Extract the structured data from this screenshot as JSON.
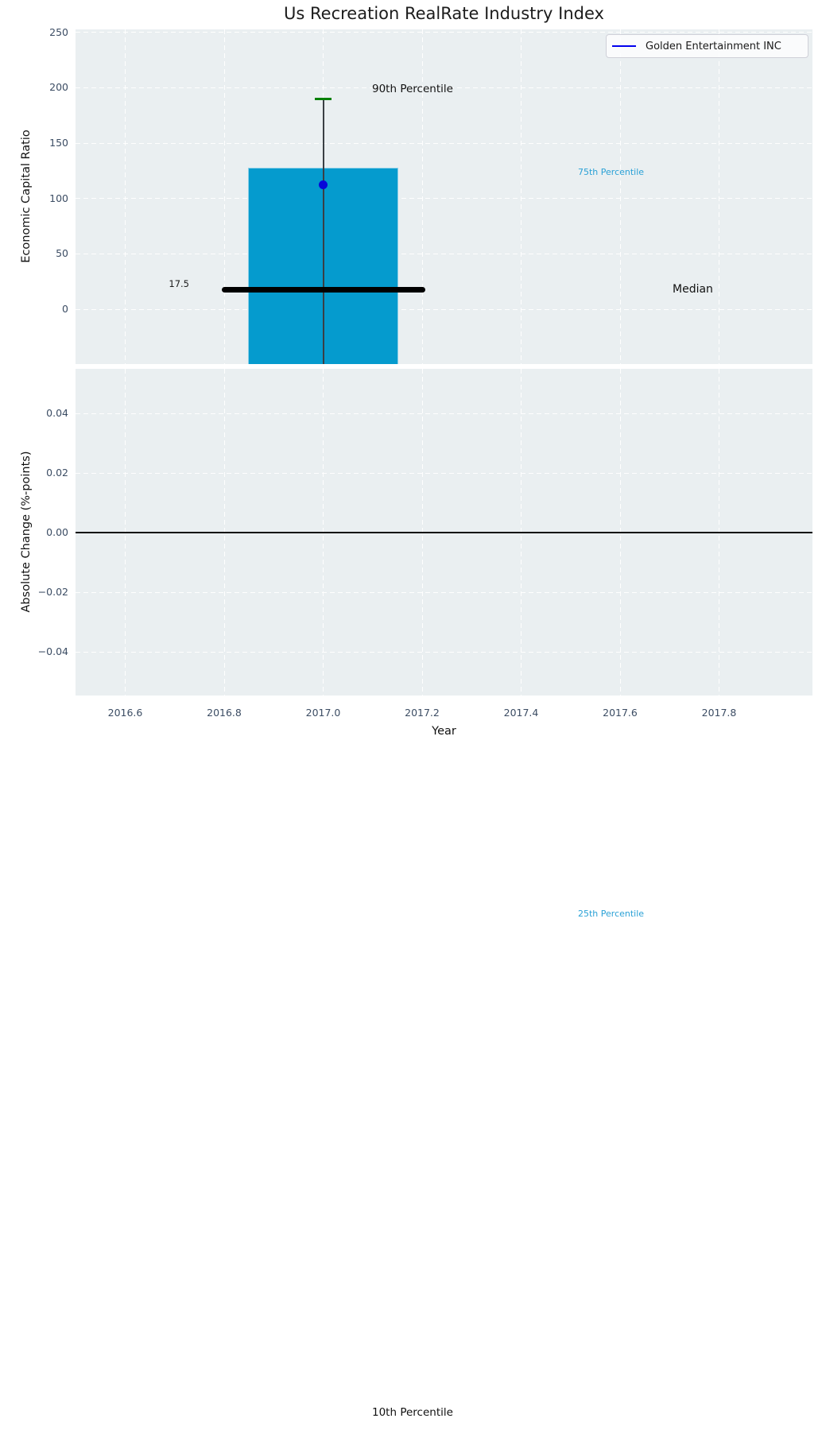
{
  "title": "Us Recreation RealRate Industry Index",
  "legend": {
    "label": "Golden Entertainment INC",
    "line_color": "#0000ee",
    "position": "upper right"
  },
  "annotations": {
    "p90": "90th Percentile",
    "p75": "75th Percentile",
    "median_label": "Median",
    "median_value": "17.5",
    "p25": "25th Percentile",
    "p10": "10th Percentile"
  },
  "chart_data": {
    "type": "bar",
    "subtype": "box-whisker-percentile-chart",
    "title": "Us Recreation RealRate Industry Index",
    "xlabel": "Year",
    "background_color": "#eaeff1",
    "grid": true,
    "grid_style": "white dashed",
    "xlim": [
      2016.5,
      2017.99
    ],
    "xtick_values": [
      2016.6,
      2016.8,
      2017.0,
      2017.2,
      2017.4,
      2017.6,
      2017.8
    ],
    "xtick_labels": [
      "2016.6",
      "2016.8",
      "2017.0",
      "2017.2",
      "2017.4",
      "2017.6",
      "2017.8"
    ],
    "panels": [
      {
        "ylabel": "Economic Capital Ratio",
        "ylim": [
          -50,
          253
        ],
        "ytick_values": [
          250,
          200,
          150,
          100,
          50,
          0
        ],
        "ytick_labels": [
          "250",
          "200",
          "150",
          "100",
          "50",
          "0"
        ]
      },
      {
        "ylabel": "Absolute Change (%-points)",
        "ylim": [
          -0.055,
          0.055
        ],
        "ytick_values": [
          0.04,
          0.02,
          0,
          -0.02,
          -0.04
        ],
        "ytick_labels": [
          "0.04",
          "0.02",
          "0.00",
          "−0.02",
          "−0.04"
        ],
        "zero_line_value": 0.0
      }
    ],
    "box": {
      "x_center": 2017.0,
      "bar_width": 0.305,
      "bar_color": "#059bce",
      "p90": 190,
      "p75": 128,
      "median": 17.5,
      "p25": "below axis range (label shown below chart)",
      "p10": "below axis range (label shown below chart)",
      "whisker_cap_color": "#078007",
      "median_line_span": [
        2016.8,
        2017.2
      ]
    },
    "series": [
      {
        "name": "Golden Entertainment INC",
        "type": "point",
        "color": "#0707d9",
        "x": 2017.0,
        "y": 112.7
      }
    ]
  }
}
